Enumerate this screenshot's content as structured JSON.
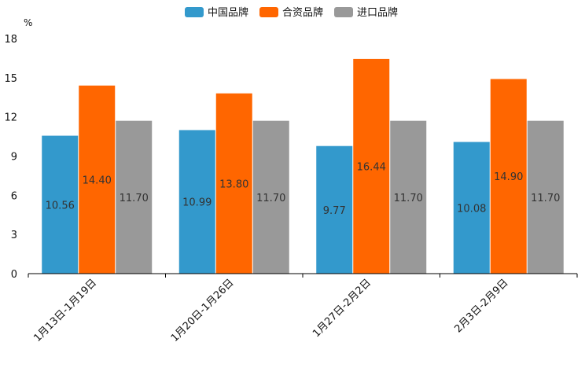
{
  "chart_data": {
    "type": "bar",
    "unit": "%",
    "categories": [
      "1月13日-1月19日",
      "1月20日-1月26日",
      "1月27日-2月2日",
      "2月3日-2月9日"
    ],
    "series": [
      {
        "name": "中国品牌",
        "color": "#3399cc",
        "values": [
          10.56,
          10.99,
          9.77,
          10.08
        ],
        "labels": [
          "10.56",
          "10.99",
          "9.77",
          "10.08"
        ]
      },
      {
        "name": "合资品牌",
        "color": "#ff6600",
        "values": [
          14.4,
          13.8,
          16.44,
          14.9
        ],
        "labels": [
          "14.40",
          "13.80",
          "16.44",
          "14.90"
        ]
      },
      {
        "name": "进口品牌",
        "color": "#999999",
        "values": [
          11.7,
          11.7,
          11.7,
          11.7
        ],
        "labels": [
          "11.70",
          "11.70",
          "11.70",
          "11.70"
        ]
      }
    ],
    "yticks": [
      "0",
      "3",
      "6",
      "9",
      "12",
      "15",
      "18"
    ],
    "ylim": [
      0,
      18
    ],
    "legend_position": "top-center",
    "grid": false
  }
}
